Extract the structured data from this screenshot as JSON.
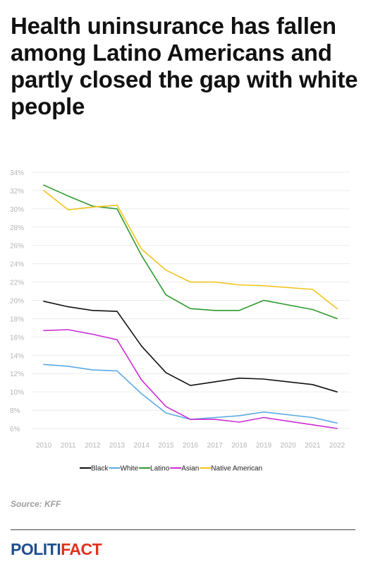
{
  "title": "Health uninsurance has fallen among Latino Americans and partly closed the gap with white people",
  "source": "Source: KFF",
  "logo": {
    "part1": "POLITI",
    "part2": "FACT"
  },
  "chart_data": {
    "type": "line",
    "x": [
      "2010",
      "2011",
      "2012",
      "2013",
      "2014",
      "2015",
      "2016",
      "2017",
      "2018",
      "2019",
      "2020",
      "2021",
      "2022"
    ],
    "ylim": [
      5,
      34
    ],
    "yticks": [
      6,
      8,
      10,
      12,
      14,
      16,
      18,
      20,
      22,
      24,
      26,
      28,
      30,
      32,
      34
    ],
    "ytick_labels": [
      "6%",
      "8%",
      "10%",
      "12%",
      "14%",
      "16%",
      "18%",
      "20%",
      "22%",
      "24%",
      "26%",
      "28%",
      "30%",
      "32%",
      "34%"
    ],
    "grid": true,
    "legend": "bottom",
    "series": [
      {
        "name": "Black",
        "color": "#111111",
        "values": [
          19.9,
          19.3,
          18.9,
          18.8,
          15.0,
          12.1,
          10.7,
          11.1,
          11.5,
          11.4,
          11.1,
          10.8,
          10.0
        ]
      },
      {
        "name": "White",
        "color": "#5aa9e6",
        "values": [
          13.0,
          12.8,
          12.4,
          12.3,
          9.8,
          7.7,
          7.0,
          7.2,
          7.4,
          7.8,
          null,
          7.2,
          6.6
        ]
      },
      {
        "name": "Latino",
        "color": "#2e9a2e",
        "values": [
          32.6,
          31.4,
          30.3,
          30.0,
          24.9,
          20.6,
          19.1,
          18.9,
          18.9,
          20.0,
          null,
          19.0,
          18.0
        ]
      },
      {
        "name": "Asian",
        "color": "#c92ed3",
        "values": [
          16.7,
          16.8,
          16.3,
          15.7,
          11.3,
          8.4,
          7.0,
          7.0,
          6.7,
          7.2,
          null,
          6.4,
          6.0
        ]
      },
      {
        "name": "Native American",
        "color": "#f2c31d",
        "values": [
          32.0,
          29.9,
          30.2,
          30.4,
          25.6,
          23.3,
          22.0,
          22.0,
          21.7,
          21.6,
          null,
          21.2,
          19.1
        ]
      }
    ]
  }
}
